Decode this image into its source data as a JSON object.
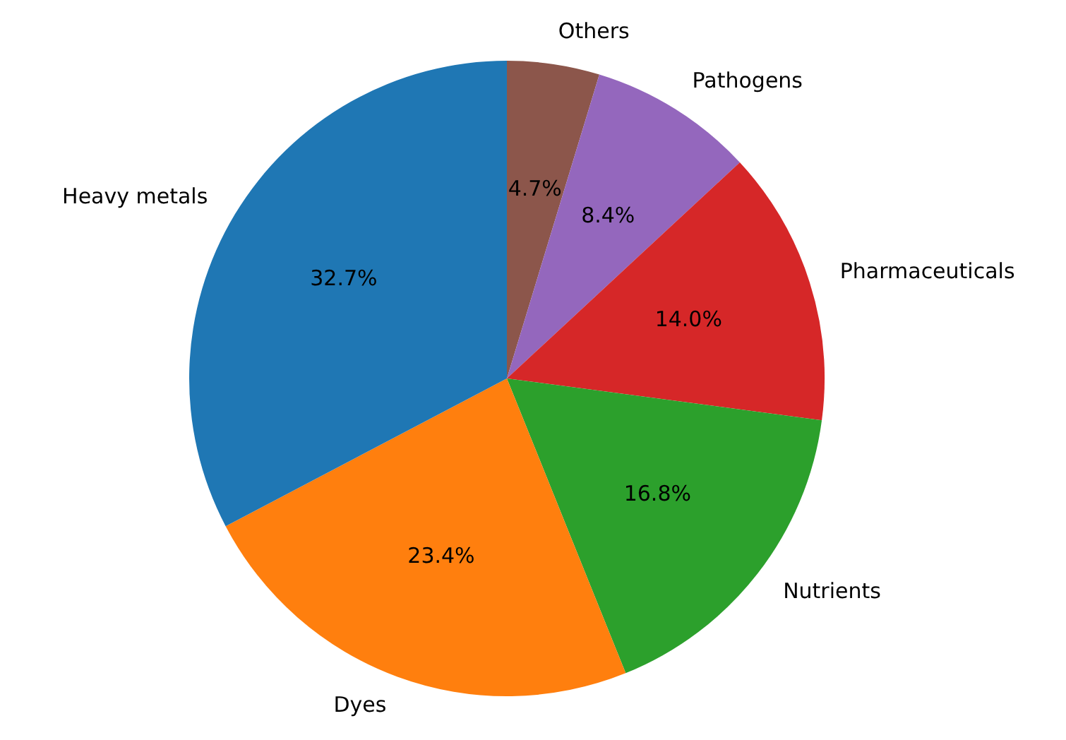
{
  "chart_data": {
    "type": "pie",
    "categories": [
      "Others",
      "Pathogens",
      "Pharmaceuticals",
      "Nutrients",
      "Dyes",
      "Heavy metals"
    ],
    "values": [
      4.7,
      8.4,
      14.0,
      16.8,
      23.4,
      32.7
    ],
    "colors": [
      "#8c564b",
      "#9467bd",
      "#d62728",
      "#2ca02c",
      "#ff7f0e",
      "#1f77b4"
    ],
    "value_labels": [
      "4.7%",
      "8.4%",
      "14.0%",
      "16.8%",
      "23.4%",
      "32.7%"
    ],
    "legend": false
  }
}
